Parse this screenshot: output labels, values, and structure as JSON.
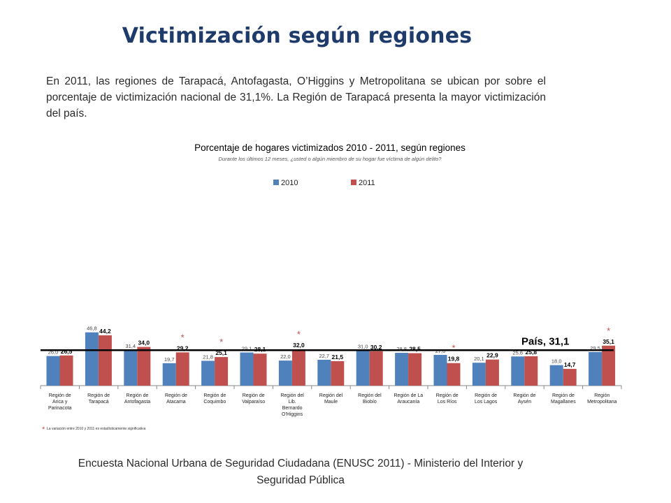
{
  "slide": {
    "title": "Victimización según regiones",
    "intro": "En 2011, las regiones de Tarapacá, Antofagasta, O’Higgins y Metropolitana se ubican por sobre el porcentaje de victimización nacional de 31,1%. La Región de Tarapacá presenta la mayor victimización del país.",
    "footer": "Encuesta Nacional Urbana de Seguridad Ciudadana (ENUSC 2011) - Ministerio del Interior y Seguridad Pública"
  },
  "colors": {
    "series_2010": "#4f81bd",
    "series_2011": "#c0504d",
    "title": "#1f3b6b",
    "star": "#c0504d"
  },
  "chart_data": {
    "type": "bar",
    "title": "Porcentaje de hogares victimizados 2010 - 2011, según regiones",
    "subtitle": "Durante los últimos 12 meses, ¿usted o algún miembro de su hogar fue víctima de algún delito?",
    "categories": [
      "Región de Arica y Parinacota",
      "Región de Tarapacá",
      "Región de Antofagasta",
      "Región de Atacama",
      "Región de Coquimbo",
      "Región de Valparaíso",
      "Región del Lib. Bernardo O'Higgins",
      "Región del Maule",
      "Región del Biobío",
      "Región de La Araucanía",
      "Región de Los Ríos",
      "Región de Los Lagos",
      "Región de Aysén",
      "Región de Magallanes",
      "Región Metropolitana"
    ],
    "series": [
      {
        "name": "2010",
        "values": [
          26.0,
          46.8,
          31.4,
          19.7,
          21.8,
          29.1,
          22.0,
          22.7,
          31.0,
          28.8,
          27.0,
          20.1,
          25.6,
          18.0,
          29.5
        ],
        "labels": [
          "26,0",
          "46,8",
          "31,4",
          "19,7",
          "21,8",
          "29,1",
          "22,0",
          "22,7",
          "31,0",
          "28,8",
          "27,0",
          "20,1",
          "25,6",
          "18,0",
          "29,5"
        ]
      },
      {
        "name": "2011",
        "values": [
          26.5,
          44.2,
          34.0,
          29.2,
          25.1,
          28.1,
          32.0,
          21.5,
          30.2,
          28.5,
          19.8,
          22.9,
          25.8,
          14.7,
          35.1
        ],
        "labels": [
          "26,5",
          "44,2",
          "34,0",
          "29,2",
          "25,1",
          "28,1",
          "32,0",
          "21,5",
          "30,2",
          "28,5",
          "19,8",
          "22,9",
          "25,8",
          "14,7",
          "35,1"
        ]
      }
    ],
    "significant": [
      false,
      false,
      false,
      true,
      true,
      false,
      true,
      false,
      false,
      false,
      true,
      false,
      false,
      false,
      true
    ],
    "star_symbol": "*",
    "reference_line": {
      "value": 31.1,
      "label": "País, 31,1"
    },
    "legend_position": "top",
    "ylim": [
      0,
      50
    ],
    "grid": false,
    "note": "La variación entre 2010 y 2011 es estadísticamente significativa"
  }
}
